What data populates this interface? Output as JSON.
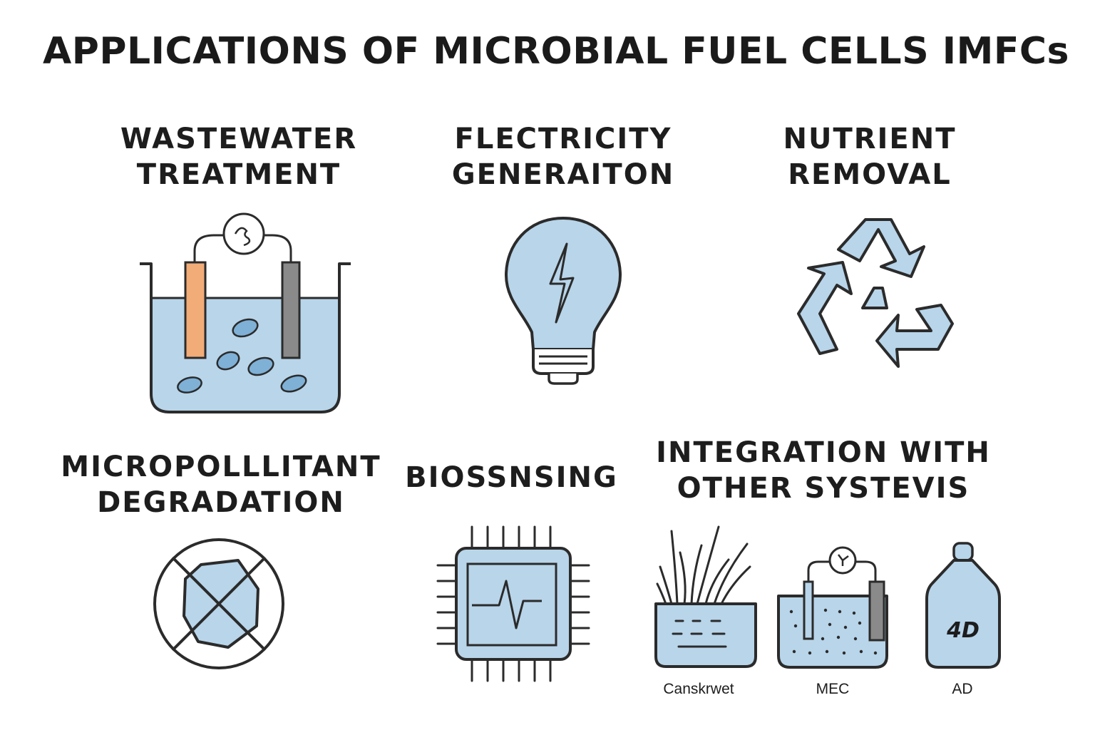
{
  "title": "APPLICATIONS OF MICROBIAL FUEL CELLS IMFCs",
  "colors": {
    "fill": "#b8d5ea",
    "stroke": "#2b2b2b",
    "anode": "#f2ac78",
    "cathode": "#8a8a8a",
    "background": "#ffffff"
  },
  "sections": {
    "wastewater": {
      "line1": "WASTEWATER",
      "line2": "TREATMENT",
      "icon": "fuel-cell-tank-icon"
    },
    "electricity": {
      "line1": "FLECTRICITY",
      "line2": "GENERAITON",
      "icon": "lightbulb-icon"
    },
    "nutrient": {
      "line1": "NUTRIENT",
      "line2": "REMOVAL",
      "icon": "recycle-icon"
    },
    "micropollutant": {
      "line1": "MICROPOLLLITANT",
      "line2": "DEGRADATION",
      "icon": "crossed-hexagon-icon"
    },
    "biosensing": {
      "line1": "BIOSSNSING",
      "icon": "sensor-chip-icon"
    },
    "integration": {
      "line1": "INTEGRATION WITH",
      "line2": "OTHER SYSTEVIS",
      "systems": [
        {
          "label": "Canskrwet",
          "icon": "wetland-planter-icon"
        },
        {
          "label": "MEC",
          "icon": "mec-tank-icon"
        },
        {
          "label": "AD",
          "icon": "ad-digester-icon",
          "inner_text": "4D"
        }
      ]
    }
  }
}
